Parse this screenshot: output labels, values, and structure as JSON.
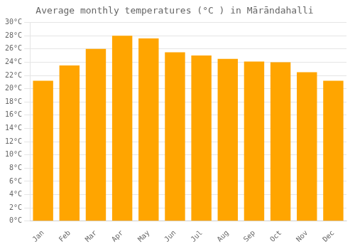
{
  "chart_data": {
    "type": "bar",
    "title": "Average monthly temperatures (°C ) in Mārāndahalli",
    "categories": [
      "Jan",
      "Feb",
      "Mar",
      "Apr",
      "May",
      "Jun",
      "Jul",
      "Aug",
      "Sep",
      "Oct",
      "Nov",
      "Dec"
    ],
    "values": [
      21.2,
      23.5,
      26.0,
      28.0,
      27.6,
      25.5,
      25.0,
      24.5,
      24.1,
      24.0,
      22.5,
      21.2
    ],
    "color": "#FFA500",
    "ylim": [
      0,
      30
    ],
    "yticks": [
      {
        "value": 0,
        "label": "0°C"
      },
      {
        "value": 2,
        "label": "2°C"
      },
      {
        "value": 4,
        "label": "4°C"
      },
      {
        "value": 6,
        "label": "6°C"
      },
      {
        "value": 8,
        "label": "8°C"
      },
      {
        "value": 10,
        "label": "10°C"
      },
      {
        "value": 12,
        "label": "12°C"
      },
      {
        "value": 14,
        "label": "14°C"
      },
      {
        "value": 16,
        "label": "16°C"
      },
      {
        "value": 18,
        "label": "18°C"
      },
      {
        "value": 20,
        "label": "20°C"
      },
      {
        "value": 22,
        "label": "22°C"
      },
      {
        "value": 24,
        "label": "24°C"
      },
      {
        "value": 26,
        "label": "26°C"
      },
      {
        "value": 28,
        "label": "28°C"
      },
      {
        "value": 30,
        "label": "30°C"
      }
    ],
    "grid": true
  }
}
